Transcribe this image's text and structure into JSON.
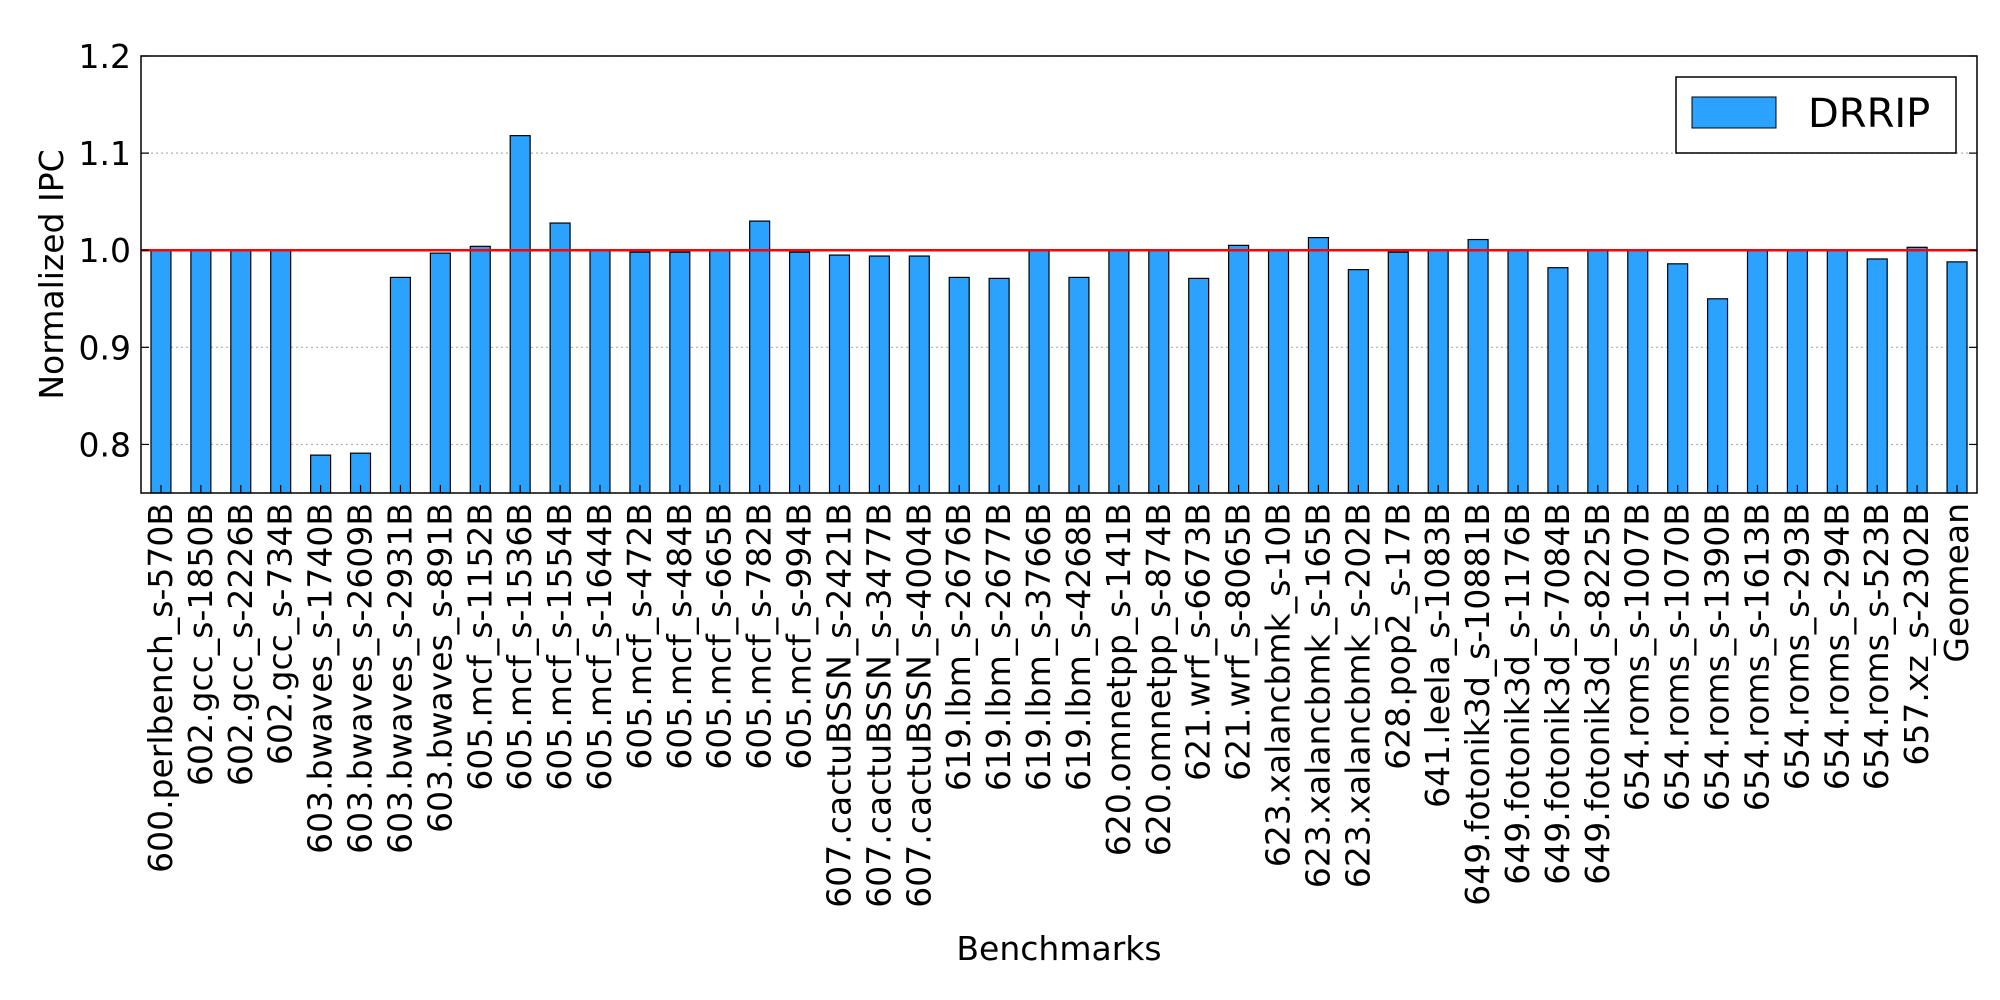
{
  "colors": {
    "bar": "#2ca2ff",
    "reference_line": "#ff0000",
    "grid": "#b0b0b0"
  },
  "chart_data": {
    "type": "bar",
    "xlabel": "Benchmarks",
    "ylabel": "Normalized IPC",
    "ylim": [
      0.75,
      1.2
    ],
    "yticks": [
      "0.8",
      "0.9",
      "1.0",
      "1.1",
      "1.2"
    ],
    "grid": "horizontal dotted",
    "reference_line": 1.0,
    "legend": {
      "position": "top-right",
      "entries": [
        "DRRIP"
      ]
    },
    "categories": [
      "600.perlbench_s-570B",
      "602.gcc_s-1850B",
      "602.gcc_s-2226B",
      "602.gcc_s-734B",
      "603.bwaves_s-1740B",
      "603.bwaves_s-2609B",
      "603.bwaves_s-2931B",
      "603.bwaves_s-891B",
      "605.mcf_s-1152B",
      "605.mcf_s-1536B",
      "605.mcf_s-1554B",
      "605.mcf_s-1644B",
      "605.mcf_s-472B",
      "605.mcf_s-484B",
      "605.mcf_s-665B",
      "605.mcf_s-782B",
      "605.mcf_s-994B",
      "607.cactuBSSN_s-2421B",
      "607.cactuBSSN_s-3477B",
      "607.cactuBSSN_s-4004B",
      "619.lbm_s-2676B",
      "619.lbm_s-2677B",
      "619.lbm_s-3766B",
      "619.lbm_s-4268B",
      "620.omnetpp_s-141B",
      "620.omnetpp_s-874B",
      "621.wrf_s-6673B",
      "621.wrf_s-8065B",
      "623.xalancbmk_s-10B",
      "623.xalancbmk_s-165B",
      "623.xalancbmk_s-202B",
      "628.pop2_s-17B",
      "641.leela_s-1083B",
      "649.fotonik3d_s-10881B",
      "649.fotonik3d_s-1176B",
      "649.fotonik3d_s-7084B",
      "649.fotonik3d_s-8225B",
      "654.roms_s-1007B",
      "654.roms_s-1070B",
      "654.roms_s-1390B",
      "654.roms_s-1613B",
      "654.roms_s-293B",
      "654.roms_s-294B",
      "654.roms_s-523B",
      "657.xz_s-2302B",
      "Geomean"
    ],
    "series": [
      {
        "name": "DRRIP",
        "values": [
          1.0,
          1.0,
          1.0,
          1.0,
          0.789,
          0.791,
          0.972,
          0.997,
          1.004,
          1.118,
          1.028,
          1.0,
          0.998,
          0.998,
          1.0,
          1.03,
          0.998,
          0.995,
          0.994,
          0.994,
          0.972,
          0.971,
          1.0,
          0.972,
          1.0,
          1.0,
          0.971,
          1.005,
          1.0,
          1.013,
          0.98,
          0.998,
          1.0,
          1.011,
          1.0,
          0.982,
          1.0,
          1.0,
          0.986,
          0.95,
          1.0,
          1.0,
          1.0,
          0.991,
          1.003,
          0.988
        ]
      }
    ]
  }
}
